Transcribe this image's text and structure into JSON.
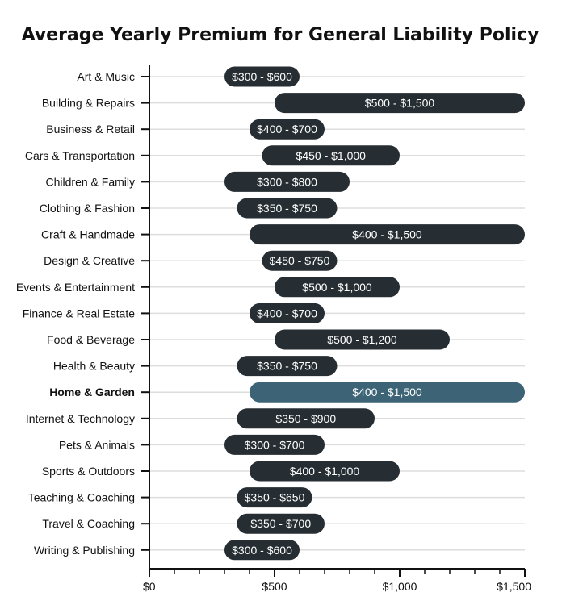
{
  "chart_data": {
    "type": "bar",
    "subtype": "floating-range",
    "orientation": "horizontal",
    "title": "Average Yearly Premium for General Liability Policy",
    "xlabel": "",
    "ylabel": "",
    "xlim": [
      0,
      1500
    ],
    "ticks": [
      0,
      500,
      1000,
      1500
    ],
    "tick_labels": [
      "$0",
      "$500",
      "$1,000",
      "$1,500"
    ],
    "minor_step": 100,
    "grid": true,
    "highlight": "Home & Garden",
    "colors": {
      "bar": "#262e33",
      "highlight": "#3d6476",
      "grid": "#dddddd",
      "axis": "#111111"
    },
    "categories": [
      "Art & Music",
      "Building & Repairs",
      "Business & Retail",
      "Cars & Transportation",
      "Children & Family",
      "Clothing & Fashion",
      "Craft & Handmade",
      "Design & Creative",
      "Events & Entertainment",
      "Finance & Real Estate",
      "Food & Beverage",
      "Health & Beauty",
      "Home & Garden",
      "Internet & Technology",
      "Pets & Animals",
      "Sports & Outdoors",
      "Teaching & Coaching",
      "Travel & Coaching",
      "Writing & Publishing"
    ],
    "ranges": [
      [
        300,
        600
      ],
      [
        500,
        1500
      ],
      [
        400,
        700
      ],
      [
        450,
        1000
      ],
      [
        300,
        800
      ],
      [
        350,
        750
      ],
      [
        400,
        1500
      ],
      [
        450,
        750
      ],
      [
        500,
        1000
      ],
      [
        400,
        700
      ],
      [
        500,
        1200
      ],
      [
        350,
        750
      ],
      [
        400,
        1500
      ],
      [
        350,
        900
      ],
      [
        300,
        700
      ],
      [
        400,
        1000
      ],
      [
        350,
        650
      ],
      [
        350,
        700
      ],
      [
        300,
        600
      ]
    ],
    "labels": [
      "$300 - $600",
      "$500 - $1,500",
      "$400 - $700",
      "$450 - $1,000",
      "$300 - $800",
      "$350 - $750",
      "$400 - $1,500",
      "$450 - $750",
      "$500 - $1,000",
      "$400 - $700",
      "$500 - $1,200",
      "$350 - $750",
      "$400 - $1,500",
      "$350 - $900",
      "$300 - $700",
      "$400 - $1,000",
      "$350 - $650",
      "$350 - $700",
      "$300 - $600"
    ]
  }
}
